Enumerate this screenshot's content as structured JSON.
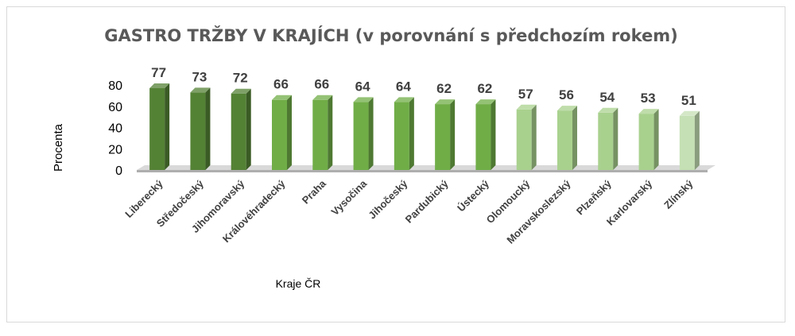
{
  "chart_data": {
    "type": "bar",
    "title": "GASTRO TRŽBY V KRAJÍCH (v porovnání s předchozím rokem)",
    "xlabel": "Kraje ČR",
    "ylabel": "Procenta",
    "ylim": [
      0,
      80
    ],
    "yticks": [
      "0",
      "20",
      "40",
      "60",
      "80"
    ],
    "grid": false,
    "legend": "none",
    "categories": [
      "Liberecký",
      "Středočeský",
      "Jihomoravský",
      "Královéhradecký",
      "Praha",
      "Vysočina",
      "Jihočeský",
      "Pardubický",
      "Ústecký",
      "Olomoucký",
      "Moravskoslezský",
      "Plzeňský",
      "Karlovarský",
      "Zlínský"
    ],
    "values": [
      77,
      73,
      72,
      66,
      66,
      64,
      64,
      62,
      62,
      57,
      56,
      54,
      53,
      51
    ],
    "data_labels": [
      "77",
      "73",
      "72",
      "66",
      "66",
      "64",
      "64",
      "62",
      "62",
      "57",
      "56",
      "54",
      "53",
      "51"
    ],
    "colors": {
      "dark_green": "#548235",
      "mid_green": "#70ad47",
      "light_green": "#a9d18e",
      "pale_green": "#c5e0b4",
      "floor": "#d9d9d9"
    },
    "bar_shades": [
      "dark_green",
      "dark_green",
      "dark_green",
      "mid_green",
      "mid_green",
      "mid_green",
      "mid_green",
      "mid_green",
      "mid_green",
      "light_green",
      "light_green",
      "light_green",
      "light_green",
      "pale_green"
    ]
  }
}
